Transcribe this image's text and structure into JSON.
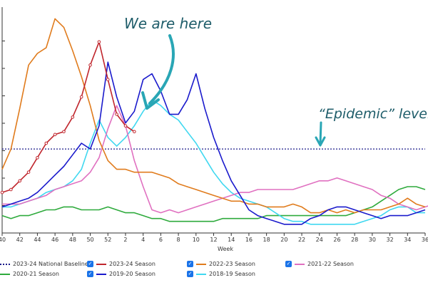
{
  "chart_data": {
    "type": "line",
    "xlabel": "Week",
    "x_ticks": [
      "40",
      "42",
      "44",
      "46",
      "48",
      "50",
      "52",
      "2",
      "4",
      "6",
      "8",
      "10",
      "12",
      "14",
      "16",
      "18",
      "20",
      "22",
      "24",
      "26",
      "28",
      "30",
      "32",
      "34",
      "36"
    ],
    "baseline": {
      "name": "2023-24 National Baseline",
      "value": 2.9,
      "color": "#1b1b8a"
    },
    "ylim": [
      0,
      7.8
    ],
    "grid": false,
    "legend_position": "bottom",
    "annotations": [
      {
        "text": "We are here"
      },
      {
        "text": "“Epidemic” level"
      }
    ],
    "series": [
      {
        "name": "2023-24 Season",
        "color": "#c0262d",
        "markers": true,
        "values": [
          1.4,
          1.5,
          1.8,
          2.1,
          2.6,
          3.1,
          3.4,
          3.5,
          4.0,
          4.7,
          5.8,
          6.6,
          5.3,
          4.1,
          3.7,
          3.5
        ]
      },
      {
        "name": "2022-23 Season",
        "color": "#e07b1c",
        "values": [
          2.2,
          2.9,
          4.3,
          5.8,
          6.2,
          6.4,
          7.4,
          7.1,
          6.3,
          5.4,
          4.4,
          3.2,
          2.5,
          2.2,
          2.2,
          2.1,
          2.1,
          2.1,
          2.0,
          1.9,
          1.7,
          1.6,
          1.5,
          1.4,
          1.3,
          1.2,
          1.1,
          1.1,
          1.0,
          1.0,
          0.9,
          0.9,
          0.9,
          1.0,
          0.9,
          0.7,
          0.7,
          0.8,
          0.7,
          0.8,
          0.7,
          0.8,
          0.8,
          0.8,
          0.9,
          1.0,
          1.2,
          1.0,
          0.9
        ]
      },
      {
        "name": "2021-22 Season",
        "color": "#e070c0",
        "values": [
          1.0,
          1.0,
          1.0,
          1.1,
          1.2,
          1.3,
          1.5,
          1.6,
          1.7,
          1.8,
          2.1,
          2.6,
          3.6,
          4.4,
          3.7,
          2.5,
          1.6,
          0.8,
          0.7,
          0.8,
          0.7,
          0.8,
          0.9,
          1.0,
          1.1,
          1.2,
          1.3,
          1.4,
          1.4,
          1.5,
          1.5,
          1.5,
          1.5,
          1.5,
          1.6,
          1.7,
          1.8,
          1.8,
          1.9,
          1.8,
          1.7,
          1.6,
          1.5,
          1.3,
          1.2,
          1.0,
          0.9,
          0.8,
          0.9,
          1.0
        ]
      },
      {
        "name": "2020-21 Season",
        "color": "#2eaa3c",
        "values": [
          0.6,
          0.5,
          0.6,
          0.6,
          0.7,
          0.8,
          0.8,
          0.9,
          0.9,
          0.8,
          0.8,
          0.8,
          0.9,
          0.8,
          0.7,
          0.7,
          0.6,
          0.5,
          0.5,
          0.4,
          0.4,
          0.4,
          0.4,
          0.4,
          0.4,
          0.5,
          0.5,
          0.5,
          0.5,
          0.5,
          0.6,
          0.6,
          0.6,
          0.6,
          0.6,
          0.6,
          0.6,
          0.6,
          0.6,
          0.6,
          0.7,
          0.8,
          0.9,
          1.1,
          1.3,
          1.5,
          1.6,
          1.6,
          1.5
        ]
      },
      {
        "name": "2019-20 Season",
        "color": "#1a1acc",
        "values": [
          0.9,
          1.0,
          1.1,
          1.2,
          1.4,
          1.7,
          2.0,
          2.3,
          2.7,
          3.1,
          2.9,
          3.7,
          5.9,
          4.7,
          3.8,
          4.2,
          5.3,
          5.5,
          4.9,
          4.1,
          4.1,
          4.6,
          5.5,
          4.3,
          3.3,
          2.5,
          1.8,
          1.3,
          0.8,
          0.6,
          0.5,
          0.4,
          0.3,
          0.3,
          0.3,
          0.5,
          0.6,
          0.8,
          0.9,
          0.9,
          0.8,
          0.7,
          0.6,
          0.5,
          0.6,
          0.6,
          0.6,
          0.7,
          0.8
        ]
      },
      {
        "name": "2018-19 Season",
        "color": "#40d8f0",
        "values": [
          0.9,
          0.9,
          1.0,
          1.1,
          1.2,
          1.4,
          1.5,
          1.6,
          1.8,
          2.2,
          3.1,
          3.9,
          3.3,
          3.0,
          3.3,
          3.7,
          4.2,
          4.6,
          4.4,
          4.1,
          3.9,
          3.5,
          3.1,
          2.6,
          2.1,
          1.7,
          1.4,
          1.2,
          1.1,
          1.0,
          0.9,
          0.7,
          0.5,
          0.4,
          0.4,
          0.3,
          0.3,
          0.3,
          0.3,
          0.3,
          0.3,
          0.4,
          0.5,
          0.6,
          0.8,
          0.9,
          0.9,
          0.7,
          0.7
        ]
      }
    ]
  }
}
